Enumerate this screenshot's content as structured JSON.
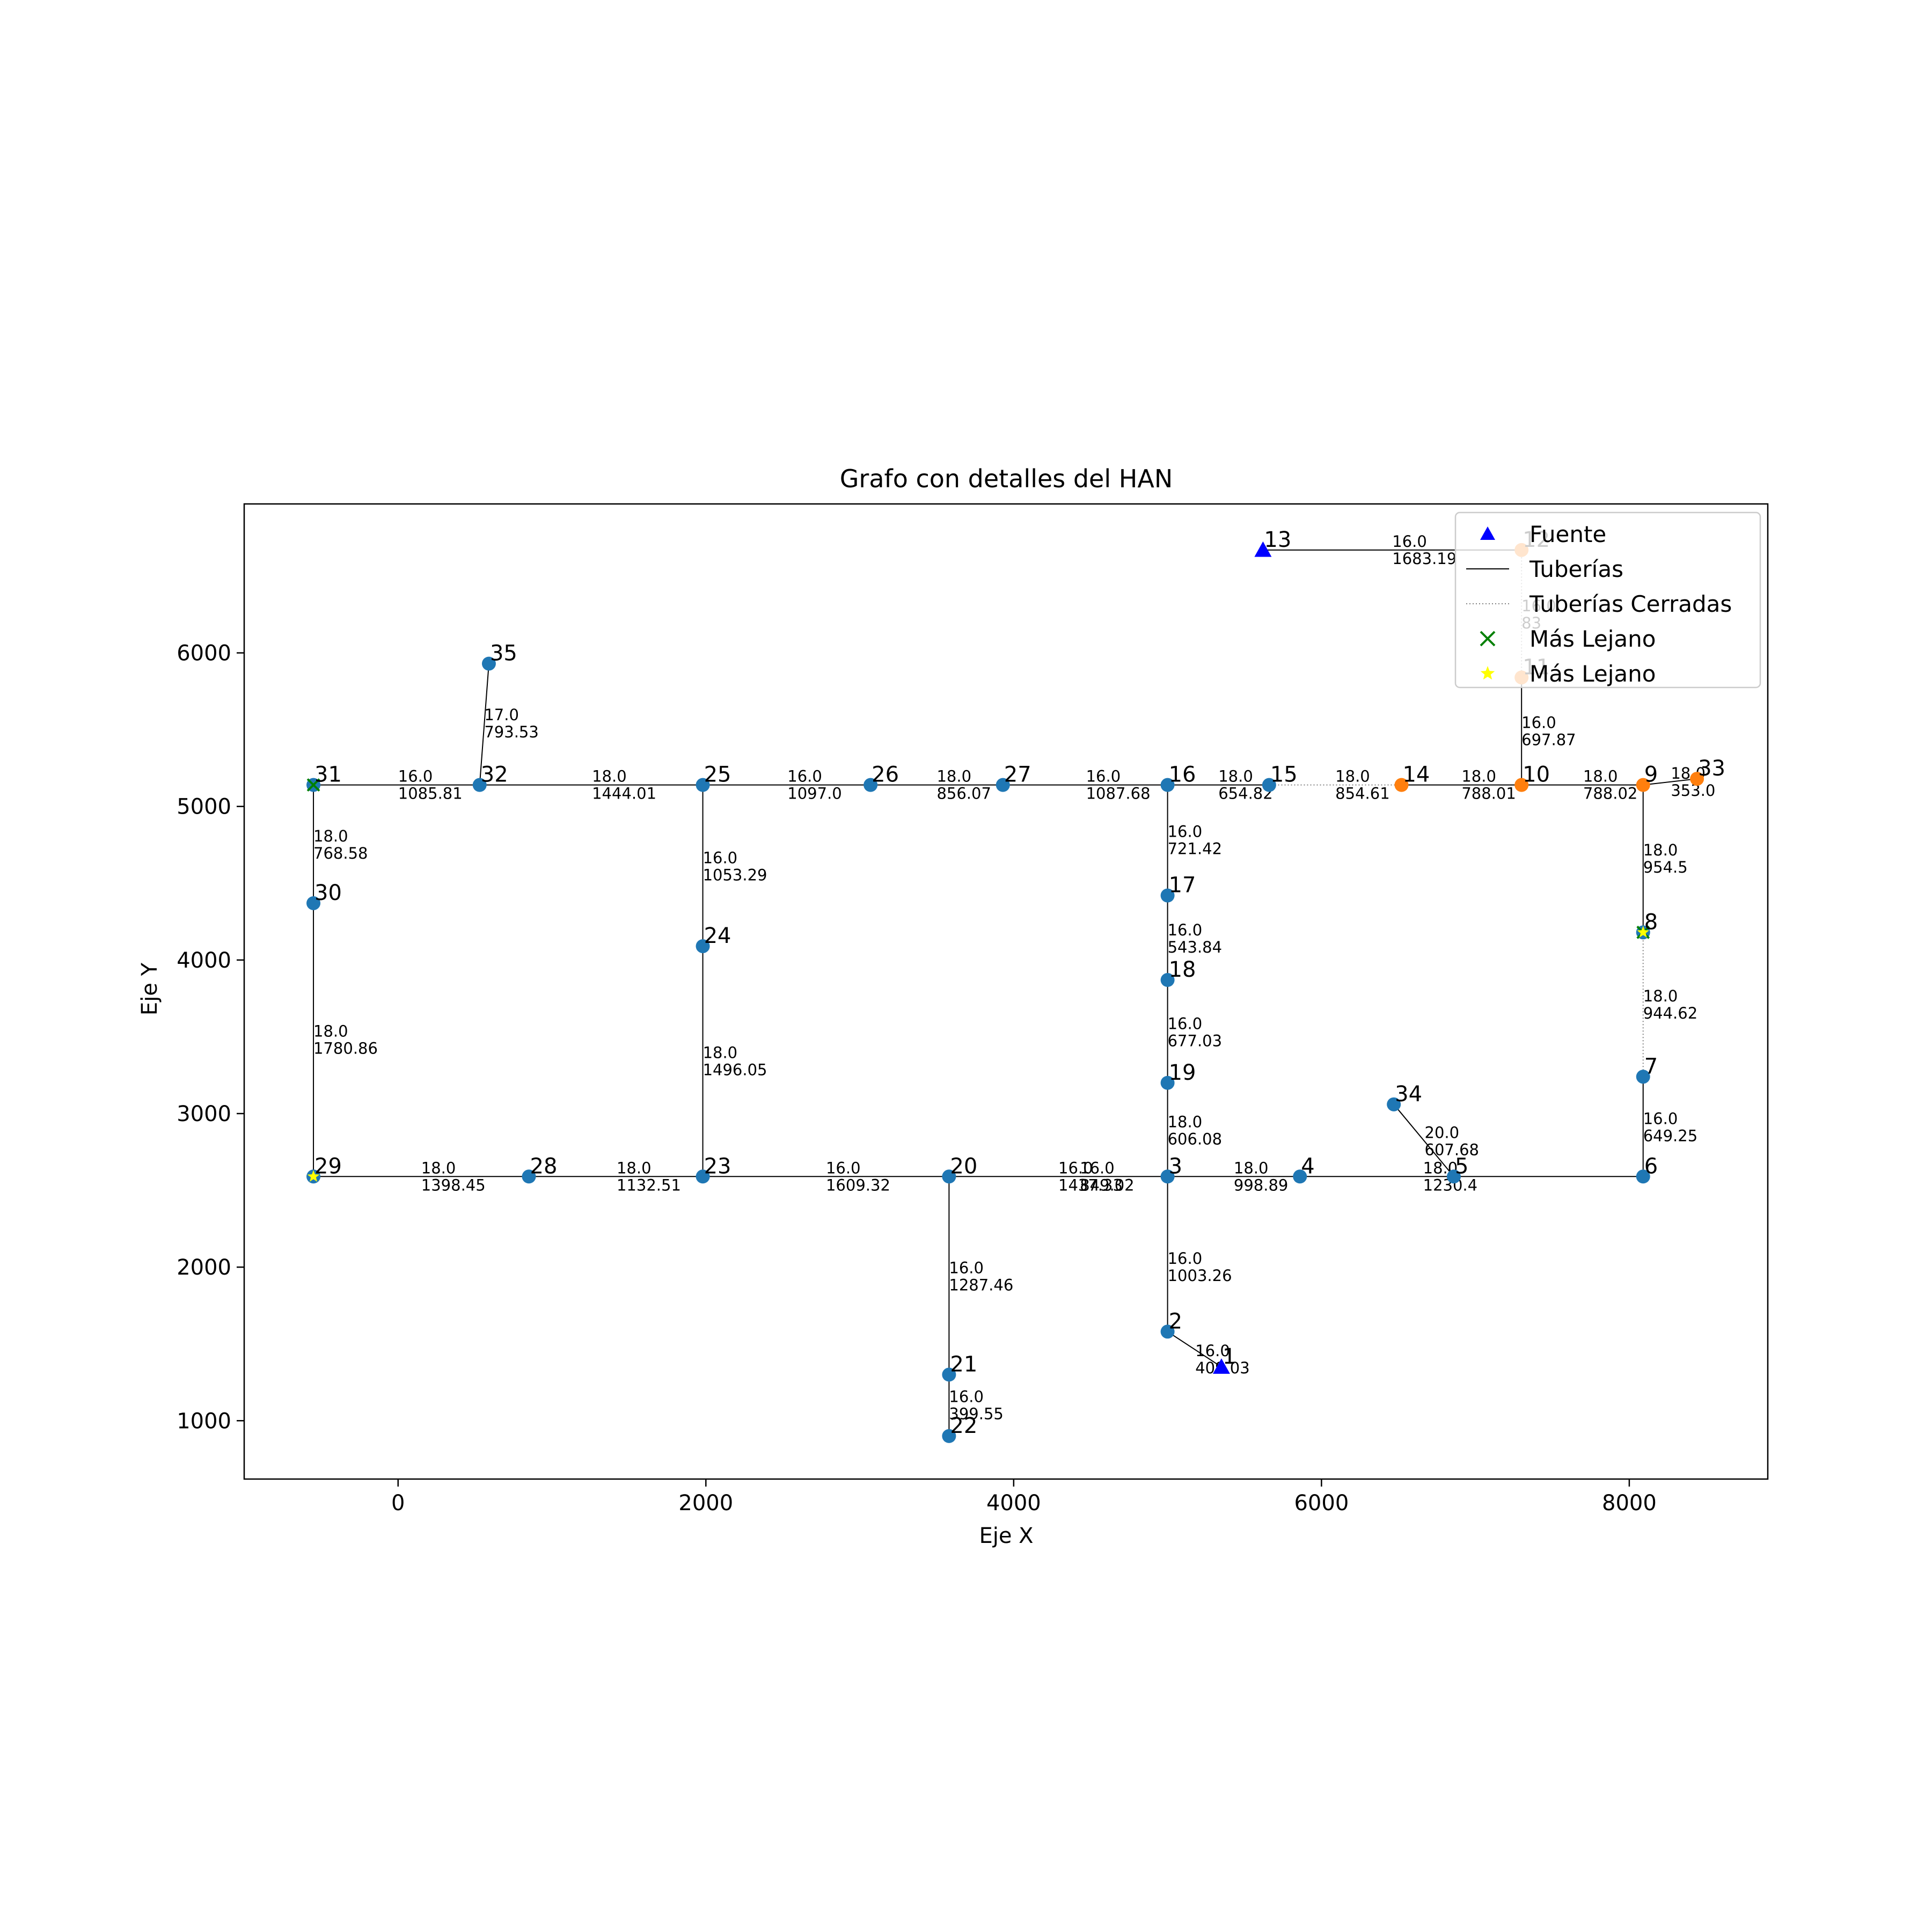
{
  "chart_data": {
    "type": "network-graph",
    "title": "Grafo con detalles del HAN",
    "xlabel": "Eje X",
    "ylabel": "Eje Y",
    "xlim": [
      -1000,
      8900
    ],
    "ylim": [
      620,
      6970
    ],
    "xticks": [
      0,
      2000,
      4000,
      6000,
      8000
    ],
    "yticks": [
      1000,
      2000,
      3000,
      4000,
      5000,
      6000
    ],
    "legend_position": "top-right",
    "legend": [
      {
        "label": "Fuente",
        "marker": "triangle",
        "color": "#0000ff"
      },
      {
        "label": "Tuberías",
        "marker": "solid-line",
        "color": "#000000"
      },
      {
        "label": "Tuberías Cerradas",
        "marker": "dotted-line",
        "color": "#808080"
      },
      {
        "label": "Más Lejano",
        "marker": "x",
        "color": "#008000"
      },
      {
        "label": "Más Lejano",
        "marker": "star",
        "color": "#ffff00"
      }
    ],
    "colors": {
      "node": "#1f77b4",
      "node_highlight": "#ff7f0e",
      "source": "#0000ff",
      "pipe": "#000000",
      "closed_pipe": "#808080",
      "farthest_x": "#008000",
      "farthest_star": "#ffff00"
    },
    "nodes": [
      {
        "id": "1",
        "x": 5350,
        "y": 1350,
        "type": "source"
      },
      {
        "id": "2",
        "x": 5000,
        "y": 1580,
        "type": "normal"
      },
      {
        "id": "3",
        "x": 5000,
        "y": 2590,
        "type": "normal"
      },
      {
        "id": "4",
        "x": 5860,
        "y": 2590,
        "type": "normal"
      },
      {
        "id": "5",
        "x": 6860,
        "y": 2590,
        "type": "normal"
      },
      {
        "id": "6",
        "x": 8090,
        "y": 2590,
        "type": "normal"
      },
      {
        "id": "7",
        "x": 8090,
        "y": 3240,
        "type": "normal"
      },
      {
        "id": "8",
        "x": 8090,
        "y": 4180,
        "type": "normal",
        "marks": [
          "x",
          "star"
        ]
      },
      {
        "id": "9",
        "x": 8090,
        "y": 5140,
        "type": "highlight"
      },
      {
        "id": "10",
        "x": 7300,
        "y": 5140,
        "type": "highlight"
      },
      {
        "id": "11",
        "x": 7300,
        "y": 5840,
        "type": "highlight"
      },
      {
        "id": "12",
        "x": 7300,
        "y": 6670,
        "type": "highlight"
      },
      {
        "id": "13",
        "x": 5620,
        "y": 6670,
        "type": "source"
      },
      {
        "id": "14",
        "x": 6520,
        "y": 5140,
        "type": "highlight"
      },
      {
        "id": "15",
        "x": 5660,
        "y": 5140,
        "type": "normal"
      },
      {
        "id": "16",
        "x": 5000,
        "y": 5140,
        "type": "normal"
      },
      {
        "id": "17",
        "x": 5000,
        "y": 4420,
        "type": "normal"
      },
      {
        "id": "18",
        "x": 5000,
        "y": 3870,
        "type": "normal"
      },
      {
        "id": "19",
        "x": 5000,
        "y": 3200,
        "type": "normal"
      },
      {
        "id": "20",
        "x": 3580,
        "y": 2590,
        "type": "normal"
      },
      {
        "id": "21",
        "x": 3580,
        "y": 1300,
        "type": "normal"
      },
      {
        "id": "22",
        "x": 3580,
        "y": 900,
        "type": "normal"
      },
      {
        "id": "23",
        "x": 1980,
        "y": 2590,
        "type": "normal"
      },
      {
        "id": "24",
        "x": 1980,
        "y": 4090,
        "type": "normal"
      },
      {
        "id": "25",
        "x": 1980,
        "y": 5140,
        "type": "normal"
      },
      {
        "id": "26",
        "x": 3070,
        "y": 5140,
        "type": "normal"
      },
      {
        "id": "27",
        "x": 3930,
        "y": 5140,
        "type": "normal"
      },
      {
        "id": "28",
        "x": 850,
        "y": 2590,
        "type": "normal"
      },
      {
        "id": "29",
        "x": -550,
        "y": 2590,
        "type": "normal",
        "marks": [
          "star"
        ]
      },
      {
        "id": "30",
        "x": -550,
        "y": 4370,
        "type": "normal"
      },
      {
        "id": "31",
        "x": -550,
        "y": 5140,
        "type": "normal",
        "marks": [
          "x"
        ]
      },
      {
        "id": "32",
        "x": 530,
        "y": 5140,
        "type": "normal"
      },
      {
        "id": "33",
        "x": 8440,
        "y": 5180,
        "type": "highlight"
      },
      {
        "id": "34",
        "x": 6470,
        "y": 3060,
        "type": "normal"
      },
      {
        "id": "35",
        "x": 590,
        "y": 5930,
        "type": "normal"
      }
    ],
    "edges": [
      {
        "from": "1",
        "to": "2",
        "diameter": "16.0",
        "length": "409.03",
        "closed": false,
        "label_at": [
          5180,
          1400
        ]
      },
      {
        "from": "2",
        "to": "3",
        "diameter": "16.0",
        "length": "1003.26",
        "closed": false,
        "label_at": [
          5000,
          2000
        ]
      },
      {
        "from": "3",
        "to": "4",
        "diameter": "16.0",
        "length": "849.02",
        "closed": false,
        "label_at": [
          4430,
          2590
        ]
      },
      {
        "from": "4",
        "to": "5",
        "diameter": "18.0",
        "length": "998.89",
        "closed": false,
        "label_at": [
          5430,
          2590
        ]
      },
      {
        "from": "5",
        "to": "6",
        "diameter": "18.0",
        "length": "1230.4",
        "closed": false,
        "label_at": [
          6660,
          2590
        ]
      },
      {
        "from": "6",
        "to": "7",
        "diameter": "16.0",
        "length": "649.25",
        "closed": false,
        "label_at": [
          8090,
          2910
        ]
      },
      {
        "from": "7",
        "to": "8",
        "diameter": "18.0",
        "length": "944.62",
        "closed": true,
        "label_at": [
          8090,
          3710
        ]
      },
      {
        "from": "8",
        "to": "9",
        "diameter": "18.0",
        "length": "954.5",
        "closed": false,
        "label_at": [
          8090,
          4660
        ]
      },
      {
        "from": "9",
        "to": "10",
        "diameter": "18.0",
        "length": "788.02",
        "closed": false,
        "label_at": [
          7700,
          5140
        ]
      },
      {
        "from": "10",
        "to": "11",
        "diameter": "16.0",
        "length": "697.87",
        "closed": false,
        "label_at": [
          7300,
          5490
        ]
      },
      {
        "from": "11",
        "to": "12",
        "diameter": "16.0",
        "length": "83",
        "closed": true,
        "label_at": [
          7300,
          6250
        ]
      },
      {
        "from": "12",
        "to": "13",
        "diameter": "16.0",
        "length": "1683.19",
        "closed": false,
        "label_at": [
          6460,
          6670
        ]
      },
      {
        "from": "10",
        "to": "14",
        "diameter": "18.0",
        "length": "788.01",
        "closed": false,
        "label_at": [
          6910,
          5140
        ]
      },
      {
        "from": "14",
        "to": "15",
        "diameter": "18.0",
        "length": "854.61",
        "closed": true,
        "label_at": [
          6090,
          5140
        ]
      },
      {
        "from": "15",
        "to": "16",
        "diameter": "18.0",
        "length": "654.82",
        "closed": false,
        "label_at": [
          5330,
          5140
        ]
      },
      {
        "from": "16",
        "to": "17",
        "diameter": "16.0",
        "length": "721.42",
        "closed": false,
        "label_at": [
          5000,
          4780
        ]
      },
      {
        "from": "17",
        "to": "18",
        "diameter": "16.0",
        "length": "543.84",
        "closed": false,
        "label_at": [
          5000,
          4140
        ]
      },
      {
        "from": "18",
        "to": "19",
        "diameter": "16.0",
        "length": "677.03",
        "closed": false,
        "label_at": [
          5000,
          3530
        ]
      },
      {
        "from": "19",
        "to": "3",
        "diameter": "18.0",
        "length": "606.08",
        "closed": false,
        "label_at": [
          5000,
          2890
        ]
      },
      {
        "from": "3",
        "to": "20",
        "diameter": "16.0",
        "length": "1437.33",
        "closed": false,
        "label_at": [
          4290,
          2590
        ]
      },
      {
        "from": "20",
        "to": "21",
        "diameter": "16.0",
        "length": "1287.46",
        "closed": false,
        "label_at": [
          3580,
          1940
        ]
      },
      {
        "from": "21",
        "to": "22",
        "diameter": "16.0",
        "length": "399.55",
        "closed": false,
        "label_at": [
          3580,
          1100
        ]
      },
      {
        "from": "20",
        "to": "23",
        "diameter": "16.0",
        "length": "1609.32",
        "closed": false,
        "label_at": [
          2780,
          2590
        ]
      },
      {
        "from": "23",
        "to": "28",
        "diameter": "18.0",
        "length": "1132.51",
        "closed": false,
        "label_at": [
          1420,
          2590
        ]
      },
      {
        "from": "28",
        "to": "29",
        "diameter": "18.0",
        "length": "1398.45",
        "closed": false,
        "label_at": [
          150,
          2590
        ]
      },
      {
        "from": "29",
        "to": "30",
        "diameter": "18.0",
        "length": "1780.86",
        "closed": false,
        "label_at": [
          -550,
          3480
        ]
      },
      {
        "from": "30",
        "to": "31",
        "diameter": "18.0",
        "length": "768.58",
        "closed": false,
        "label_at": [
          -550,
          4750
        ]
      },
      {
        "from": "31",
        "to": "32",
        "diameter": "16.0",
        "length": "1085.81",
        "closed": false,
        "label_at": [
          0,
          5140
        ]
      },
      {
        "from": "32",
        "to": "35",
        "diameter": "17.0",
        "length": "793.53",
        "closed": false,
        "label_at": [
          560,
          5540
        ]
      },
      {
        "from": "32",
        "to": "25",
        "diameter": "18.0",
        "length": "1444.01",
        "closed": false,
        "label_at": [
          1260,
          5140
        ]
      },
      {
        "from": "25",
        "to": "24",
        "diameter": "16.0",
        "length": "1053.29",
        "closed": false,
        "label_at": [
          1980,
          4610
        ]
      },
      {
        "from": "24",
        "to": "23",
        "diameter": "18.0",
        "length": "1496.05",
        "closed": false,
        "label_at": [
          1980,
          3340
        ]
      },
      {
        "from": "25",
        "to": "26",
        "diameter": "16.0",
        "length": "1097.0",
        "closed": false,
        "label_at": [
          2530,
          5140
        ]
      },
      {
        "from": "26",
        "to": "27",
        "diameter": "18.0",
        "length": "856.07",
        "closed": false,
        "label_at": [
          3500,
          5140
        ]
      },
      {
        "from": "27",
        "to": "16",
        "diameter": "16.0",
        "length": "1087.68",
        "closed": false,
        "label_at": [
          4470,
          5140
        ]
      },
      {
        "from": "9",
        "to": "33",
        "diameter": "18.0",
        "length": "353.0",
        "closed": false,
        "label_at": [
          8270,
          5160
        ]
      },
      {
        "from": "34",
        "to": "5",
        "diameter": "20.0",
        "length": "607.68",
        "closed": false,
        "label_at": [
          6670,
          2820
        ]
      }
    ]
  }
}
